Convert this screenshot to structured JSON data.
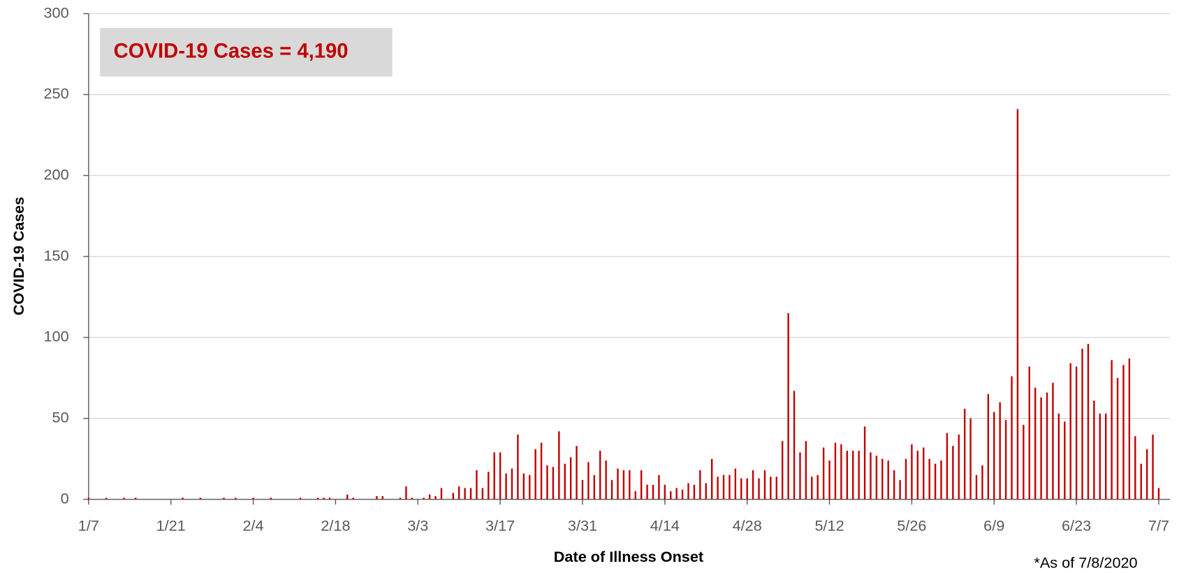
{
  "chart_data": {
    "type": "bar",
    "annotation": "COVID-19 Cases = 4,190",
    "footnote": "*As of 7/8/2020",
    "x_label": "Date of Illness Onset",
    "y_label": "COVID-19 Cases",
    "color": "#c00000",
    "grid": true,
    "ylim": [
      0,
      300
    ],
    "yticks": [
      0,
      50,
      100,
      150,
      200,
      250,
      300
    ],
    "categories": [
      "1/7",
      null,
      null,
      null,
      null,
      null,
      null,
      null,
      null,
      null,
      null,
      null,
      null,
      null,
      "1/21",
      null,
      null,
      null,
      null,
      null,
      null,
      null,
      null,
      null,
      null,
      null,
      null,
      null,
      "2/4",
      null,
      null,
      null,
      null,
      null,
      null,
      null,
      null,
      null,
      null,
      null,
      null,
      null,
      "2/18",
      null,
      null,
      null,
      null,
      null,
      null,
      null,
      null,
      null,
      null,
      null,
      null,
      null,
      "3/3",
      null,
      null,
      null,
      null,
      null,
      null,
      null,
      null,
      null,
      null,
      null,
      null,
      null,
      "3/17",
      null,
      null,
      null,
      null,
      null,
      null,
      null,
      null,
      null,
      null,
      null,
      null,
      null,
      "3/31",
      null,
      null,
      null,
      null,
      null,
      null,
      null,
      null,
      null,
      null,
      null,
      null,
      null,
      "4/14",
      null,
      null,
      null,
      null,
      null,
      null,
      null,
      null,
      null,
      null,
      null,
      null,
      null,
      "4/28",
      null,
      null,
      null,
      null,
      null,
      null,
      null,
      null,
      null,
      null,
      null,
      null,
      null,
      "5/12",
      null,
      null,
      null,
      null,
      null,
      null,
      null,
      null,
      null,
      null,
      null,
      null,
      null,
      "5/26",
      null,
      null,
      null,
      null,
      null,
      null,
      null,
      null,
      null,
      null,
      null,
      null,
      null,
      "6/9",
      null,
      null,
      null,
      null,
      null,
      null,
      null,
      null,
      null,
      null,
      null,
      null,
      null,
      "6/23",
      null,
      null,
      null,
      null,
      null,
      null,
      null,
      null,
      null,
      null,
      null,
      null,
      null,
      "7/7"
    ],
    "values": [
      1,
      0,
      0,
      1,
      0,
      0,
      1,
      0,
      1,
      0,
      0,
      0,
      0,
      0,
      0,
      0,
      1,
      0,
      0,
      1,
      0,
      0,
      0,
      1,
      0,
      1,
      0,
      0,
      1,
      0,
      0,
      1,
      0,
      0,
      0,
      0,
      1,
      0,
      0,
      1,
      1,
      1,
      0,
      0,
      3,
      1,
      0,
      0,
      0,
      2,
      2,
      0,
      0,
      1,
      8,
      1,
      0,
      1,
      3,
      2,
      7,
      0,
      4,
      8,
      7,
      7,
      18,
      7,
      17,
      29,
      29,
      16,
      19,
      40,
      16,
      15,
      31,
      35,
      21,
      20,
      42,
      22,
      26,
      33,
      12,
      23,
      15,
      30,
      24,
      12,
      19,
      18,
      18,
      5,
      18,
      9,
      9,
      15,
      9,
      5,
      7,
      6,
      10,
      9,
      18,
      10,
      25,
      14,
      15,
      15,
      19,
      13,
      13,
      18,
      13,
      18,
      14,
      14,
      36,
      115,
      67,
      29,
      36,
      14,
      15,
      32,
      24,
      35,
      34,
      30,
      30,
      30,
      45,
      29,
      27,
      25,
      24,
      18,
      12,
      25,
      34,
      30,
      32,
      25,
      22,
      24,
      41,
      33,
      40,
      56,
      50,
      15,
      21,
      65,
      54,
      60,
      49,
      76,
      241,
      46,
      82,
      69,
      63,
      66,
      72,
      53,
      48,
      84,
      82,
      93,
      96,
      61,
      53,
      53,
      86,
      75,
      83,
      87,
      39,
      22,
      31,
      40,
      7
    ]
  }
}
